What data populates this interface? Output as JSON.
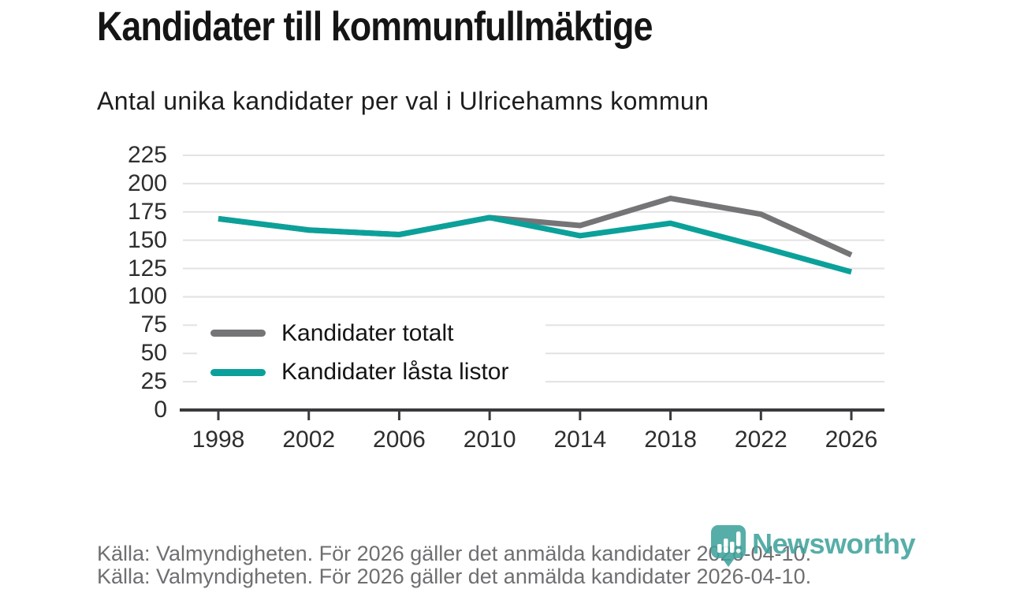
{
  "header": {
    "title": "Kandidater till kommunfullmäktige",
    "subtitle": "Antal unika kandidater per val i Ulricehamns kommun"
  },
  "chart_data": {
    "type": "line",
    "x": [
      1998,
      2002,
      2006,
      2010,
      2014,
      2018,
      2022,
      2026
    ],
    "series": [
      {
        "name": "Kandidater totalt",
        "color": "#757578",
        "values": [
          169,
          159,
          155,
          170,
          163,
          187,
          173,
          137
        ]
      },
      {
        "name": "Kandidater låsta listor",
        "color": "#0ba19a",
        "values": [
          169,
          159,
          155,
          170,
          154,
          165,
          144,
          122
        ]
      }
    ],
    "title": "Kandidater till kommunfullmäktige",
    "xlabel": "",
    "ylabel": "",
    "ylim": [
      0,
      225
    ],
    "yticks": [
      0,
      25,
      50,
      75,
      100,
      125,
      150,
      175,
      200,
      225
    ],
    "grid": true,
    "legend_position": "inside-left-middle",
    "colors": {
      "gridline": "#e2e2e4",
      "axis": "#3a3a3e",
      "tick_label": "#2e2e31"
    }
  },
  "footer": {
    "source_text": "Källa: Valmyndigheten. För 2026 gäller det anmälda kandidater 2026-04-10."
  },
  "branding": {
    "logo_text": "Newsworthy",
    "logo_color": "#40a39d",
    "logo_icon": "newsworthy-pin-barchart-icon"
  }
}
